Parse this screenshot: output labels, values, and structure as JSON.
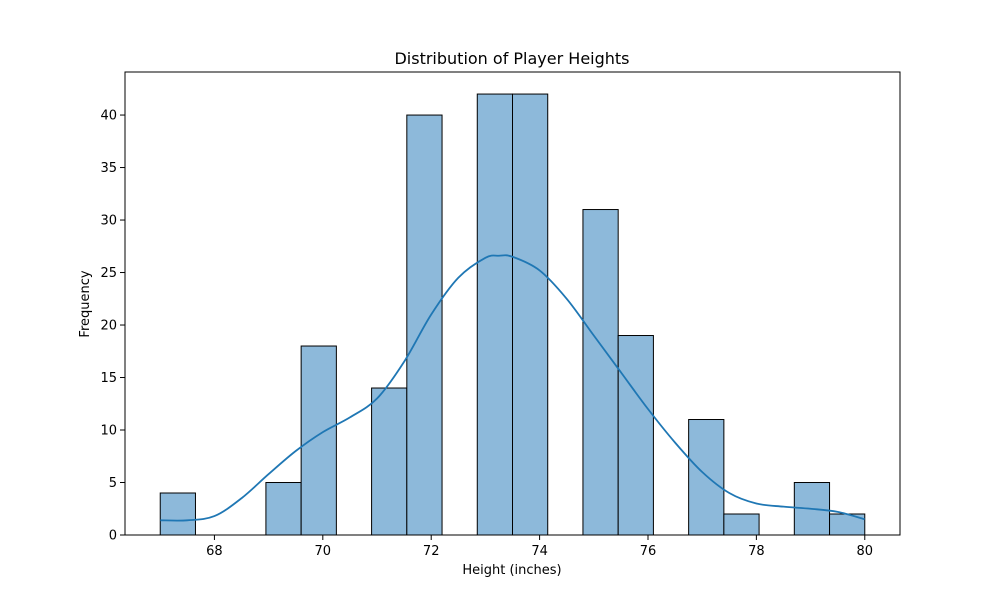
{
  "chart_data": {
    "type": "bar",
    "title": "Distribution of Player Heights",
    "xlabel": "Height (inches)",
    "ylabel": "Frequency",
    "xlim": [
      66.35,
      80.65
    ],
    "ylim": [
      0,
      44.1
    ],
    "x_ticks": [
      68,
      70,
      72,
      74,
      76,
      78,
      80
    ],
    "y_ticks": [
      0,
      5,
      10,
      15,
      20,
      25,
      30,
      35,
      40
    ],
    "bins": [
      {
        "x0": 67.0,
        "x1": 67.65,
        "count": 4
      },
      {
        "x0": 67.65,
        "x1": 68.3,
        "count": 0
      },
      {
        "x0": 68.3,
        "x1": 68.95,
        "count": 0
      },
      {
        "x0": 68.95,
        "x1": 69.6,
        "count": 5
      },
      {
        "x0": 69.6,
        "x1": 70.25,
        "count": 18
      },
      {
        "x0": 70.25,
        "x1": 70.9,
        "count": 0
      },
      {
        "x0": 70.9,
        "x1": 71.55,
        "count": 14
      },
      {
        "x0": 71.55,
        "x1": 72.2,
        "count": 40
      },
      {
        "x0": 72.2,
        "x1": 72.85,
        "count": 0
      },
      {
        "x0": 72.85,
        "x1": 73.5,
        "count": 42
      },
      {
        "x0": 73.5,
        "x1": 74.15,
        "count": 42
      },
      {
        "x0": 74.15,
        "x1": 74.8,
        "count": 0
      },
      {
        "x0": 74.8,
        "x1": 75.45,
        "count": 31
      },
      {
        "x0": 75.45,
        "x1": 76.1,
        "count": 19
      },
      {
        "x0": 76.1,
        "x1": 76.75,
        "count": 0
      },
      {
        "x0": 76.75,
        "x1": 77.4,
        "count": 11
      },
      {
        "x0": 77.4,
        "x1": 78.05,
        "count": 2
      },
      {
        "x0": 78.05,
        "x1": 78.7,
        "count": 0
      },
      {
        "x0": 78.7,
        "x1": 79.35,
        "count": 5
      },
      {
        "x0": 79.35,
        "x1": 80.0,
        "count": 2
      }
    ],
    "kde": {
      "x": [
        67.0,
        67.5,
        68.0,
        68.5,
        69.0,
        69.5,
        70.0,
        70.5,
        71.0,
        71.5,
        72.0,
        72.5,
        73.0,
        73.25,
        73.5,
        74.0,
        74.5,
        75.0,
        75.5,
        76.0,
        76.5,
        77.0,
        77.5,
        78.0,
        78.5,
        79.0,
        79.5,
        80.0
      ],
      "y": [
        1.4,
        1.4,
        1.8,
        3.5,
        5.8,
        8.0,
        9.8,
        11.2,
        13.0,
        16.5,
        21.0,
        24.5,
        26.4,
        26.6,
        26.5,
        25.2,
        22.5,
        19.0,
        15.5,
        12.0,
        8.8,
        6.0,
        4.0,
        3.0,
        2.7,
        2.5,
        2.2,
        1.5
      ]
    },
    "colors": {
      "bar_fill": "#8db9da",
      "bar_edge": "#000000",
      "kde_line": "#1f77b4"
    },
    "grid": false,
    "legend": "none"
  }
}
